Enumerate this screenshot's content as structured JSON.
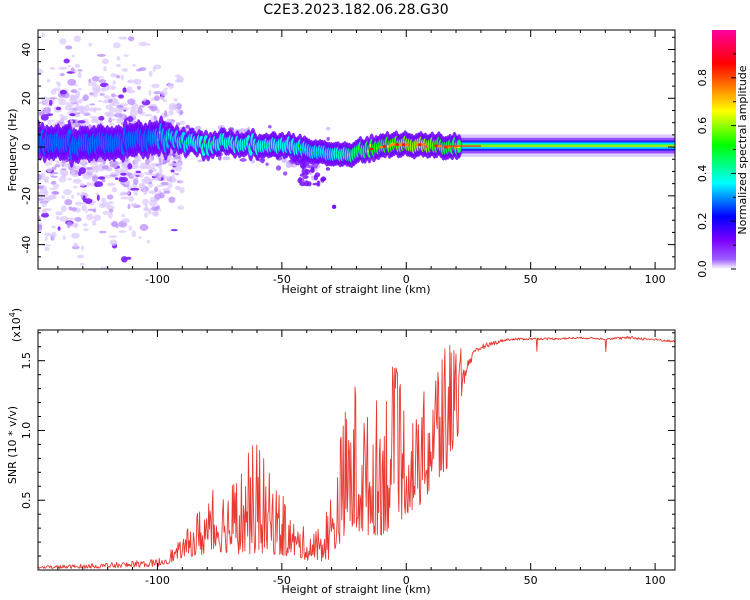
{
  "title": "C2E3.2023.182.06.28.G30",
  "chart_data": [
    {
      "type": "heatmap",
      "description": "Time-frequency spectrogram of normalized spectral amplitude vs height",
      "xlabel": "Height of straight line (km)",
      "ylabel": "Frequency (Hz)",
      "xlim": [
        -148,
        108
      ],
      "ylim": [
        -50,
        48
      ],
      "xticks": [
        -100,
        -50,
        0,
        50,
        100
      ],
      "xtick_labels": [
        "-100",
        "-50",
        "0",
        "50",
        "100"
      ],
      "yticks": [
        -40,
        -20,
        0,
        20,
        40
      ],
      "ytick_labels": [
        "-40",
        "-20",
        "0",
        "20",
        "40"
      ],
      "colorbar": {
        "label": "Normalized spectral amplitude",
        "range": [
          0,
          1
        ],
        "ticks": [
          0.0,
          0.2,
          0.4,
          0.6,
          0.8
        ],
        "tick_labels": [
          "0.0",
          "0.2",
          "0.4",
          "0.6",
          "0.8"
        ],
        "colormap": [
          "#ffffff",
          "#7a00ff",
          "#0000ff",
          "#00ffff",
          "#00ff00",
          "#ffff00",
          "#ff7f00",
          "#ff0000",
          "#ff00a0"
        ]
      },
      "ridge": {
        "heights": [
          -145,
          -130,
          -115,
          -100,
          -90,
          -80,
          -70,
          -60,
          -50,
          -40,
          -30,
          -25,
          -20,
          -15,
          -10,
          -5,
          0,
          5,
          10,
          15,
          20,
          30,
          50,
          70,
          90,
          108
        ],
        "frequency_hz": [
          2,
          1,
          2,
          4,
          3,
          1,
          2,
          0,
          1,
          -1,
          -3,
          -3,
          -2,
          -1,
          0,
          1,
          1,
          1,
          1,
          0,
          0,
          0,
          0,
          0,
          1,
          1
        ],
        "peak_amplitude": [
          0.1,
          0.15,
          0.2,
          0.35,
          0.4,
          0.45,
          0.45,
          0.45,
          0.45,
          0.4,
          0.4,
          0.5,
          0.55,
          0.6,
          0.65,
          0.7,
          0.75,
          0.8,
          0.75,
          0.6,
          0.6,
          0.45,
          0.4,
          0.4,
          0.38,
          0.35
        ]
      }
    },
    {
      "type": "line",
      "xlabel": "Height of straight line (km)",
      "ylabel": "SNR (10 * v/v)",
      "y_multiplier_label": "(x10",
      "y_multiplier_exponent": "4",
      "y_multiplier_suffix": ")",
      "xlim": [
        -148,
        108
      ],
      "ylim": [
        0,
        17200
      ],
      "xticks": [
        -100,
        -50,
        0,
        50,
        100
      ],
      "xtick_labels": [
        "-100",
        "-50",
        "0",
        "50",
        "100"
      ],
      "yticks": [
        5000,
        10000,
        15000
      ],
      "ytick_labels": [
        "0.5",
        "1.0",
        "1.5"
      ],
      "series": [
        {
          "name": "SNR",
          "color": "#e83a32",
          "envelope_x": [
            -148,
            -120,
            -100,
            -95,
            -90,
            -85,
            -80,
            -75,
            -70,
            -65,
            -60,
            -55,
            -50,
            -45,
            -40,
            -35,
            -30,
            -25,
            -20,
            -15,
            -10,
            -5,
            0,
            5,
            10,
            15,
            20,
            25,
            30,
            40,
            50,
            60,
            70,
            80,
            90,
            100,
            108
          ],
          "envelope_low": [
            100,
            150,
            250,
            500,
            900,
            1000,
            1100,
            1300,
            1200,
            1100,
            1200,
            1200,
            1000,
            1000,
            700,
            600,
            800,
            2500,
            2500,
            2500,
            2500,
            3000,
            4000,
            4500,
            5500,
            6500,
            9000,
            14000,
            15500,
            16300,
            16400,
            16400,
            16500,
            16400,
            16400,
            16300,
            16200
          ],
          "envelope_high": [
            300,
            500,
            800,
            1500,
            2200,
            4000,
            5500,
            6000,
            6500,
            8000,
            9500,
            7000,
            5500,
            3500,
            3000,
            3000,
            6000,
            11500,
            14200,
            11000,
            13500,
            15000,
            12500,
            10800,
            15500,
            16800,
            17000,
            16700,
            16900,
            16900,
            16900,
            16900,
            16900,
            16900,
            17100,
            16900,
            16700
          ]
        }
      ]
    }
  ]
}
